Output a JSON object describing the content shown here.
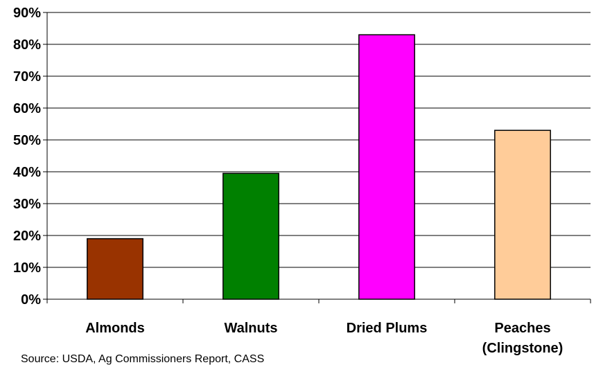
{
  "chart_data": {
    "type": "bar",
    "categories": [
      [
        "Almonds"
      ],
      [
        "Walnuts"
      ],
      [
        "Dried Plums"
      ],
      [
        "Peaches",
        "(Clingstone)"
      ]
    ],
    "values": [
      0.19,
      0.395,
      0.83,
      0.53
    ],
    "colors": [
      "#993300",
      "#008000",
      "#FF00FF",
      "#FFCC99"
    ],
    "ylim": [
      0,
      0.9
    ],
    "yticks": [
      "0%",
      "10%",
      "20%",
      "30%",
      "40%",
      "50%",
      "60%",
      "70%",
      "80%",
      "90%"
    ],
    "grid": true,
    "legend": "none"
  },
  "source": "Source:  USDA,  Ag Commissioners Report, CASS"
}
